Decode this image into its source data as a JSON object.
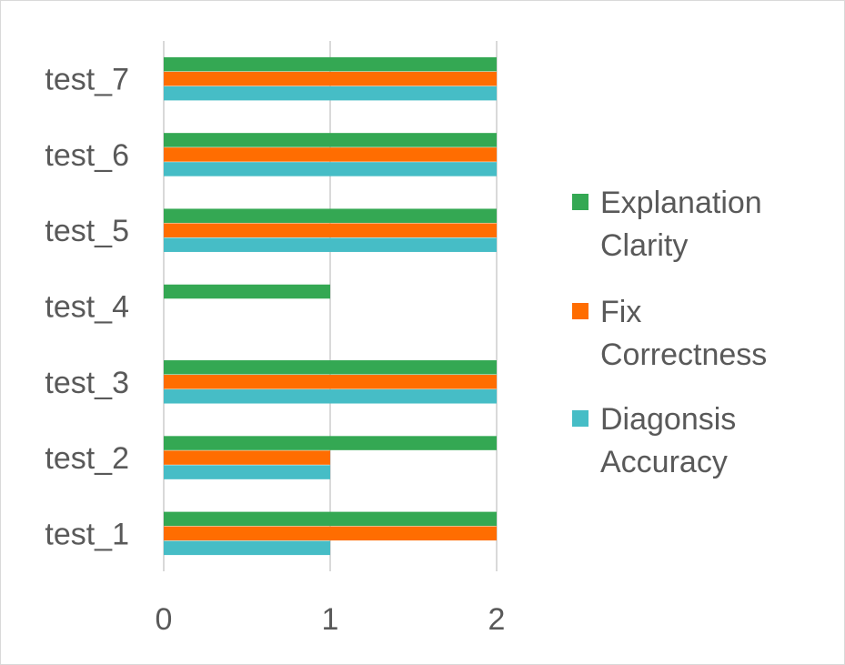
{
  "chart_data": {
    "type": "bar",
    "orientation": "horizontal",
    "categories": [
      "test_1",
      "test_2",
      "test_3",
      "test_4",
      "test_5",
      "test_6",
      "test_7"
    ],
    "series": [
      {
        "name": "Explanation Clarity",
        "legend_lines": [
          "Explanation",
          "Clarity"
        ],
        "color": "#34a853",
        "values": [
          2,
          2,
          2,
          1,
          2,
          2,
          2
        ]
      },
      {
        "name": "Fix Correctness",
        "legend_lines": [
          "Fix",
          "Correctness"
        ],
        "color": "#ff6d01",
        "values": [
          2,
          1,
          2,
          0,
          2,
          2,
          2
        ]
      },
      {
        "name": "Diagonsis Accuracy",
        "legend_lines": [
          "Diagonsis",
          "Accuracy"
        ],
        "color": "#46bdc6",
        "values": [
          1,
          1,
          2,
          0,
          2,
          2,
          2
        ]
      }
    ],
    "x_ticks": [
      "0",
      "1",
      "2"
    ],
    "xlim": [
      0,
      2
    ],
    "grid": true,
    "legend_position": "right"
  }
}
